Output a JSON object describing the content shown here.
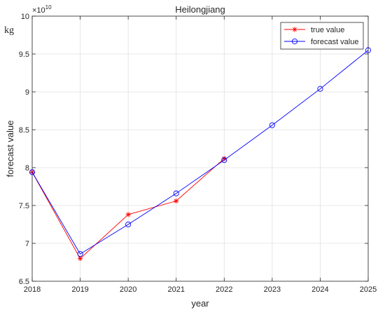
{
  "chart_data": {
    "type": "line",
    "title": "Heilongjiang",
    "xlabel": "year",
    "ylabel": "forecast value",
    "y_unit": "kg",
    "y_exponent_label": "×10",
    "y_exponent": "10",
    "xlim": [
      2018,
      2025
    ],
    "ylim": [
      6.5,
      10
    ],
    "x_ticks": [
      "2018",
      "2019",
      "2020",
      "2021",
      "2022",
      "2023",
      "2024",
      "2025"
    ],
    "y_ticks": [
      "6.5",
      "7",
      "7.5",
      "8",
      "8.5",
      "9",
      "9.5",
      "10"
    ],
    "grid": true,
    "legend_position": "top-right",
    "series": [
      {
        "name": "true value",
        "color": "#ff0000",
        "marker": "asterisk",
        "x": [
          2018,
          2019,
          2020,
          2021,
          2022
        ],
        "y": [
          7.94,
          6.8,
          7.38,
          7.56,
          8.12
        ]
      },
      {
        "name": "forecast value",
        "color": "#0000ff",
        "marker": "circle",
        "x": [
          2018,
          2019,
          2020,
          2021,
          2022,
          2023,
          2024,
          2025
        ],
        "y": [
          7.94,
          6.86,
          7.25,
          7.66,
          8.1,
          8.56,
          9.04,
          9.55
        ]
      }
    ]
  }
}
